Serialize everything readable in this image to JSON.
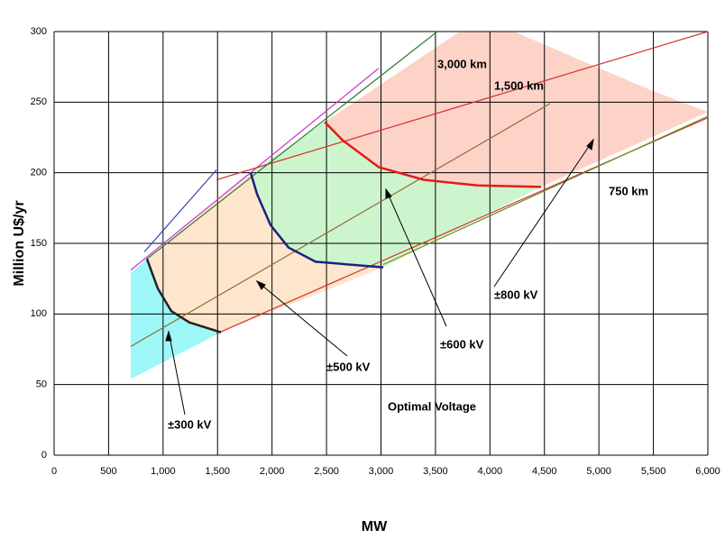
{
  "chart_data": {
    "type": "area",
    "ylabel": "Million U$/yr",
    "xlabel": "MW",
    "xlim": [
      0,
      6000
    ],
    "ylim": [
      0,
      300
    ],
    "xticks": [
      0,
      500,
      {
        "value": 1000,
        "label": "1,000"
      },
      {
        "value": 1500,
        "label": "1,500"
      },
      {
        "value": 2000,
        "label": "2,000"
      },
      {
        "value": 2500,
        "label": "2,500"
      },
      {
        "value": 3000,
        "label": "3,000"
      },
      {
        "value": 3500,
        "label": "3,500"
      },
      {
        "value": 4000,
        "label": "4,000"
      },
      {
        "value": 4500,
        "label": "4,500"
      },
      {
        "value": 5000,
        "label": "5,000"
      },
      {
        "value": 5500,
        "label": "5,500"
      },
      {
        "value": 6000,
        "label": "6,000"
      }
    ],
    "yticks": [
      0,
      50,
      100,
      150,
      200,
      250,
      300
    ],
    "grid": true,
    "series": [
      {
        "name": "±300 kV",
        "color": "#9ef7f7",
        "x": [
          703,
          852,
          952,
          1076,
          1241,
          1531,
          703
        ],
        "values": [
          129,
          139,
          118,
          102,
          94,
          87,
          54
        ]
      },
      {
        "name": "±500 kV",
        "color": "#fde6cc",
        "x": [
          852,
          1804,
          1862,
          1986,
          2152,
          2400,
          3021,
          1531,
          1241,
          1076,
          952
        ],
        "values": [
          139,
          200,
          185,
          163,
          147,
          137,
          133,
          87,
          94,
          102,
          118
        ]
      },
      {
        "name": "±600 kV",
        "color": "#cdf5cd",
        "x": [
          1804,
          2483,
          2648,
          2979,
          3393,
          3890,
          4469,
          3021,
          2400,
          2152,
          1986,
          1862
        ],
        "values": [
          200,
          236,
          223,
          204,
          195,
          191,
          190,
          133,
          137,
          147,
          163,
          185
        ]
      },
      {
        "name": "±800 kV",
        "color": "#fdd3c8",
        "x": [
          2483,
          3724,
          4221,
          4883,
          5462,
          6000,
          4469,
          3890,
          3393,
          2979,
          2648
        ],
        "values": [
          236,
          300,
          300,
          278,
          259,
          243,
          190,
          191,
          195,
          204,
          223
        ]
      }
    ],
    "boundaries": [
      {
        "color": "#222222",
        "x": [
          852,
          952,
          1076,
          1241,
          1531
        ],
        "values": [
          139,
          118,
          102,
          94,
          87
        ]
      },
      {
        "color": "#1a237e",
        "x": [
          1804,
          1862,
          1986,
          2152,
          2400,
          3021
        ],
        "values": [
          200,
          185,
          163,
          147,
          137,
          133
        ]
      },
      {
        "color": "#e21b1b",
        "x": [
          2483,
          2648,
          2979,
          3393,
          3890,
          4469
        ],
        "values": [
          236,
          223,
          204,
          195,
          191,
          190
        ]
      }
    ],
    "lines": [
      {
        "color": "#cc33cc",
        "x": [
          703,
          2979
        ],
        "values": [
          131,
          274
        ]
      },
      {
        "color": "#3344aa",
        "x": [
          828,
          1490
        ],
        "values": [
          144,
          202
        ]
      },
      {
        "color": "#2e7d32",
        "x": [
          852,
          3517
        ],
        "values": [
          139,
          300
        ]
      },
      {
        "color": "#d32f2f",
        "x": [
          1490,
          6000
        ],
        "values": [
          195,
          300
        ]
      },
      {
        "color": "#8e6b3a",
        "x": [
          703,
          4552
        ],
        "values": [
          77,
          249
        ]
      },
      {
        "color": "#d32f2f",
        "x": [
          1490,
          6000
        ],
        "values": [
          86,
          239
        ]
      },
      {
        "color": "#6b8e23",
        "x": [
          3021,
          6000
        ],
        "values": [
          135,
          240
        ]
      }
    ],
    "annotations": [
      "3,000 km",
      "1,500 km",
      "750 km",
      "±300 kV",
      "±500 kV",
      "±600 kV",
      "±800 kV",
      "Optimal Voltage"
    ]
  }
}
